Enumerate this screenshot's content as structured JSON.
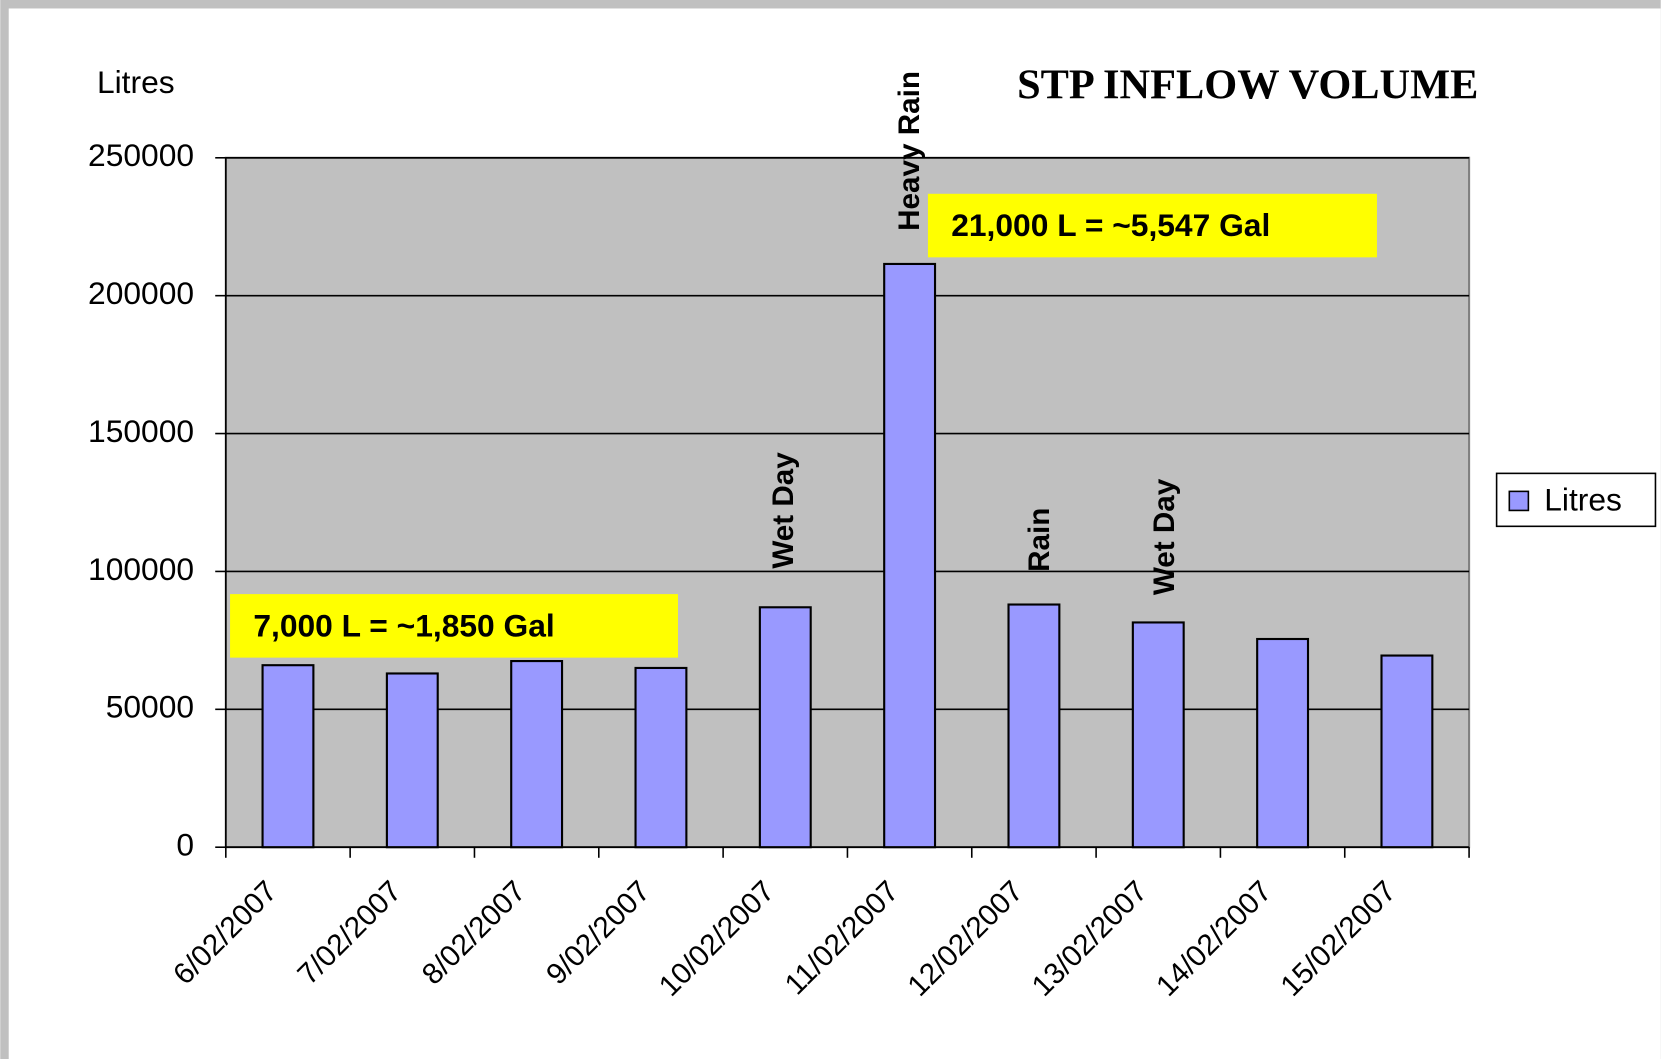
{
  "chart_data": {
    "type": "bar",
    "title": "STP INFLOW VOLUME",
    "y_label": "Litres",
    "categories": [
      "6/02/2007",
      "7/02/2007",
      "8/02/2007",
      "9/02/2007",
      "10/02/2007",
      "11/02/2007",
      "12/02/2007",
      "13/02/2007",
      "14/02/2007",
      "15/02/2007"
    ],
    "series": [
      {
        "name": "Litres",
        "color": "#9999ff",
        "values": [
          66000,
          63000,
          67500,
          65000,
          87000,
          211500,
          88000,
          81500,
          75500,
          69500
        ]
      }
    ],
    "ylim": [
      0,
      250000
    ],
    "yticks": [
      0,
      50000,
      100000,
      150000,
      200000,
      250000
    ],
    "grid": true,
    "legend": "right",
    "annotations": [
      "Wet Day",
      "Heavy Rain",
      "Rain",
      "Wet Day"
    ],
    "callouts": [
      "7,000 L = ~1,850 Gal",
      "21,000 L = ~5,547 Gal"
    ]
  }
}
